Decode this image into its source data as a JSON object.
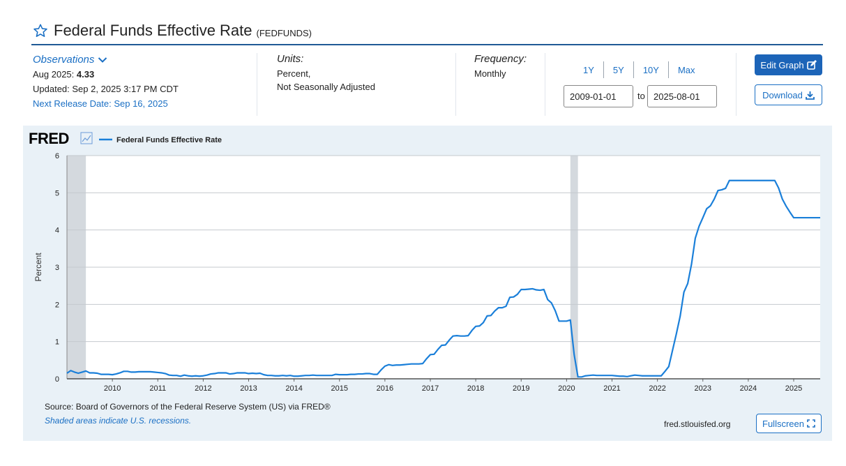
{
  "header": {
    "title": "Federal Funds Effective Rate",
    "series_id": "(FEDFUNDS)"
  },
  "observations": {
    "label": "Observations",
    "latest_prefix": "Aug 2025: ",
    "latest_value": "4.33",
    "updated": "Updated: Sep 2, 2025 3:17 PM CDT",
    "next_release": "Next Release Date: Sep 16, 2025"
  },
  "units": {
    "label": "Units:",
    "line1": "Percent,",
    "line2": "Not Seasonally Adjusted"
  },
  "frequency": {
    "label": "Frequency:",
    "value": "Monthly"
  },
  "range_buttons": [
    "1Y",
    "5Y",
    "10Y",
    "Max"
  ],
  "date_range": {
    "start": "2009-01-01",
    "to_label": "to",
    "end": "2025-08-01"
  },
  "buttons": {
    "edit_graph": "Edit Graph",
    "download": "Download",
    "fullscreen": "Fullscreen"
  },
  "footer": {
    "source": "Source: Board of Governors of the Federal Reserve System (US) via FRED®",
    "recession_note": "Shaded areas indicate U.S. recessions.",
    "url": "fred.stlouisfed.org"
  },
  "colors": {
    "line": "#1a7fd9",
    "recession": "#d4d9de",
    "accent": "#1c64b8",
    "panel_bg": "#e9f1f7"
  },
  "chart_data": {
    "type": "line",
    "logo": "FRED",
    "legend": "Federal Funds Effective Rate",
    "ylabel": "Percent",
    "ylim": [
      0,
      6
    ],
    "yticks": [
      0,
      1,
      2,
      3,
      4,
      5,
      6
    ],
    "xlim": [
      "2009-01-01",
      "2025-08-01"
    ],
    "xticks": [
      "2010",
      "2011",
      "2012",
      "2013",
      "2014",
      "2015",
      "2016",
      "2017",
      "2018",
      "2019",
      "2020",
      "2021",
      "2022",
      "2023",
      "2024",
      "2025"
    ],
    "grid": true,
    "recessions": [
      {
        "start": "2009-01-01",
        "end": "2009-06-01"
      },
      {
        "start": "2020-02-01",
        "end": "2020-04-01"
      }
    ],
    "series": [
      {
        "name": "Federal Funds Effective Rate",
        "points": [
          [
            "2009-01-01",
            0.15
          ],
          [
            "2009-02-01",
            0.22
          ],
          [
            "2009-03-01",
            0.18
          ],
          [
            "2009-04-01",
            0.15
          ],
          [
            "2009-05-01",
            0.18
          ],
          [
            "2009-06-01",
            0.21
          ],
          [
            "2009-07-01",
            0.16
          ],
          [
            "2009-08-01",
            0.16
          ],
          [
            "2009-09-01",
            0.15
          ],
          [
            "2009-10-01",
            0.12
          ],
          [
            "2009-11-01",
            0.12
          ],
          [
            "2009-12-01",
            0.12
          ],
          [
            "2010-01-01",
            0.11
          ],
          [
            "2010-02-01",
            0.13
          ],
          [
            "2010-03-01",
            0.16
          ],
          [
            "2010-04-01",
            0.2
          ],
          [
            "2010-05-01",
            0.2
          ],
          [
            "2010-06-01",
            0.18
          ],
          [
            "2010-07-01",
            0.18
          ],
          [
            "2010-08-01",
            0.19
          ],
          [
            "2010-09-01",
            0.19
          ],
          [
            "2010-10-01",
            0.19
          ],
          [
            "2010-11-01",
            0.19
          ],
          [
            "2010-12-01",
            0.18
          ],
          [
            "2011-01-01",
            0.17
          ],
          [
            "2011-02-01",
            0.16
          ],
          [
            "2011-03-01",
            0.14
          ],
          [
            "2011-04-01",
            0.1
          ],
          [
            "2011-05-01",
            0.09
          ],
          [
            "2011-06-01",
            0.09
          ],
          [
            "2011-07-01",
            0.07
          ],
          [
            "2011-08-01",
            0.1
          ],
          [
            "2011-09-01",
            0.08
          ],
          [
            "2011-10-01",
            0.07
          ],
          [
            "2011-11-01",
            0.08
          ],
          [
            "2011-12-01",
            0.07
          ],
          [
            "2012-01-01",
            0.08
          ],
          [
            "2012-02-01",
            0.1
          ],
          [
            "2012-03-01",
            0.13
          ],
          [
            "2012-04-01",
            0.14
          ],
          [
            "2012-05-01",
            0.16
          ],
          [
            "2012-06-01",
            0.16
          ],
          [
            "2012-07-01",
            0.16
          ],
          [
            "2012-08-01",
            0.13
          ],
          [
            "2012-09-01",
            0.14
          ],
          [
            "2012-10-01",
            0.16
          ],
          [
            "2012-11-01",
            0.16
          ],
          [
            "2012-12-01",
            0.16
          ],
          [
            "2013-01-01",
            0.14
          ],
          [
            "2013-02-01",
            0.15
          ],
          [
            "2013-03-01",
            0.14
          ],
          [
            "2013-04-01",
            0.15
          ],
          [
            "2013-05-01",
            0.11
          ],
          [
            "2013-06-01",
            0.09
          ],
          [
            "2013-07-01",
            0.09
          ],
          [
            "2013-08-01",
            0.08
          ],
          [
            "2013-09-01",
            0.08
          ],
          [
            "2013-10-01",
            0.09
          ],
          [
            "2013-11-01",
            0.08
          ],
          [
            "2013-12-01",
            0.09
          ],
          [
            "2014-01-01",
            0.07
          ],
          [
            "2014-02-01",
            0.07
          ],
          [
            "2014-03-01",
            0.08
          ],
          [
            "2014-04-01",
            0.09
          ],
          [
            "2014-05-01",
            0.09
          ],
          [
            "2014-06-01",
            0.1
          ],
          [
            "2014-07-01",
            0.09
          ],
          [
            "2014-08-01",
            0.09
          ],
          [
            "2014-09-01",
            0.09
          ],
          [
            "2014-10-01",
            0.09
          ],
          [
            "2014-11-01",
            0.09
          ],
          [
            "2014-12-01",
            0.12
          ],
          [
            "2015-01-01",
            0.11
          ],
          [
            "2015-02-01",
            0.11
          ],
          [
            "2015-03-01",
            0.11
          ],
          [
            "2015-04-01",
            0.12
          ],
          [
            "2015-05-01",
            0.12
          ],
          [
            "2015-06-01",
            0.13
          ],
          [
            "2015-07-01",
            0.13
          ],
          [
            "2015-08-01",
            0.14
          ],
          [
            "2015-09-01",
            0.14
          ],
          [
            "2015-10-01",
            0.12
          ],
          [
            "2015-11-01",
            0.12
          ],
          [
            "2015-12-01",
            0.24
          ],
          [
            "2016-01-01",
            0.34
          ],
          [
            "2016-02-01",
            0.38
          ],
          [
            "2016-03-01",
            0.36
          ],
          [
            "2016-04-01",
            0.37
          ],
          [
            "2016-05-01",
            0.37
          ],
          [
            "2016-06-01",
            0.38
          ],
          [
            "2016-07-01",
            0.39
          ],
          [
            "2016-08-01",
            0.4
          ],
          [
            "2016-09-01",
            0.4
          ],
          [
            "2016-10-01",
            0.4
          ],
          [
            "2016-11-01",
            0.41
          ],
          [
            "2016-12-01",
            0.54
          ],
          [
            "2017-01-01",
            0.65
          ],
          [
            "2017-02-01",
            0.66
          ],
          [
            "2017-03-01",
            0.79
          ],
          [
            "2017-04-01",
            0.9
          ],
          [
            "2017-05-01",
            0.91
          ],
          [
            "2017-06-01",
            1.04
          ],
          [
            "2017-07-01",
            1.15
          ],
          [
            "2017-08-01",
            1.16
          ],
          [
            "2017-09-01",
            1.15
          ],
          [
            "2017-10-01",
            1.15
          ],
          [
            "2017-11-01",
            1.16
          ],
          [
            "2017-12-01",
            1.3
          ],
          [
            "2018-01-01",
            1.41
          ],
          [
            "2018-02-01",
            1.42
          ],
          [
            "2018-03-01",
            1.51
          ],
          [
            "2018-04-01",
            1.69
          ],
          [
            "2018-05-01",
            1.7
          ],
          [
            "2018-06-01",
            1.82
          ],
          [
            "2018-07-01",
            1.91
          ],
          [
            "2018-08-01",
            1.91
          ],
          [
            "2018-09-01",
            1.95
          ],
          [
            "2018-10-01",
            2.19
          ],
          [
            "2018-11-01",
            2.2
          ],
          [
            "2018-12-01",
            2.27
          ],
          [
            "2019-01-01",
            2.4
          ],
          [
            "2019-02-01",
            2.4
          ],
          [
            "2019-03-01",
            2.41
          ],
          [
            "2019-04-01",
            2.42
          ],
          [
            "2019-05-01",
            2.39
          ],
          [
            "2019-06-01",
            2.38
          ],
          [
            "2019-07-01",
            2.4
          ],
          [
            "2019-08-01",
            2.13
          ],
          [
            "2019-09-01",
            2.04
          ],
          [
            "2019-10-01",
            1.83
          ],
          [
            "2019-11-01",
            1.55
          ],
          [
            "2019-12-01",
            1.55
          ],
          [
            "2020-01-01",
            1.55
          ],
          [
            "2020-02-01",
            1.58
          ],
          [
            "2020-03-01",
            0.65
          ],
          [
            "2020-04-01",
            0.05
          ],
          [
            "2020-05-01",
            0.05
          ],
          [
            "2020-06-01",
            0.08
          ],
          [
            "2020-07-01",
            0.09
          ],
          [
            "2020-08-01",
            0.1
          ],
          [
            "2020-09-01",
            0.09
          ],
          [
            "2020-10-01",
            0.09
          ],
          [
            "2020-11-01",
            0.09
          ],
          [
            "2020-12-01",
            0.09
          ],
          [
            "2021-01-01",
            0.09
          ],
          [
            "2021-02-01",
            0.08
          ],
          [
            "2021-03-01",
            0.07
          ],
          [
            "2021-04-01",
            0.07
          ],
          [
            "2021-05-01",
            0.06
          ],
          [
            "2021-06-01",
            0.08
          ],
          [
            "2021-07-01",
            0.1
          ],
          [
            "2021-08-01",
            0.09
          ],
          [
            "2021-09-01",
            0.08
          ],
          [
            "2021-10-01",
            0.08
          ],
          [
            "2021-11-01",
            0.08
          ],
          [
            "2021-12-01",
            0.08
          ],
          [
            "2022-01-01",
            0.08
          ],
          [
            "2022-02-01",
            0.08
          ],
          [
            "2022-03-01",
            0.2
          ],
          [
            "2022-04-01",
            0.33
          ],
          [
            "2022-05-01",
            0.77
          ],
          [
            "2022-06-01",
            1.21
          ],
          [
            "2022-07-01",
            1.68
          ],
          [
            "2022-08-01",
            2.33
          ],
          [
            "2022-09-01",
            2.56
          ],
          [
            "2022-10-01",
            3.08
          ],
          [
            "2022-11-01",
            3.78
          ],
          [
            "2022-12-01",
            4.1
          ],
          [
            "2023-01-01",
            4.33
          ],
          [
            "2023-02-01",
            4.57
          ],
          [
            "2023-03-01",
            4.65
          ],
          [
            "2023-04-01",
            4.83
          ],
          [
            "2023-05-01",
            5.06
          ],
          [
            "2023-06-01",
            5.08
          ],
          [
            "2023-07-01",
            5.12
          ],
          [
            "2023-08-01",
            5.33
          ],
          [
            "2023-09-01",
            5.33
          ],
          [
            "2023-10-01",
            5.33
          ],
          [
            "2023-11-01",
            5.33
          ],
          [
            "2023-12-01",
            5.33
          ],
          [
            "2024-01-01",
            5.33
          ],
          [
            "2024-02-01",
            5.33
          ],
          [
            "2024-03-01",
            5.33
          ],
          [
            "2024-04-01",
            5.33
          ],
          [
            "2024-05-01",
            5.33
          ],
          [
            "2024-06-01",
            5.33
          ],
          [
            "2024-07-01",
            5.33
          ],
          [
            "2024-08-01",
            5.33
          ],
          [
            "2024-09-01",
            5.13
          ],
          [
            "2024-10-01",
            4.83
          ],
          [
            "2024-11-01",
            4.64
          ],
          [
            "2024-12-01",
            4.48
          ],
          [
            "2025-01-01",
            4.33
          ],
          [
            "2025-02-01",
            4.33
          ],
          [
            "2025-03-01",
            4.33
          ],
          [
            "2025-04-01",
            4.33
          ],
          [
            "2025-05-01",
            4.33
          ],
          [
            "2025-06-01",
            4.33
          ],
          [
            "2025-07-01",
            4.33
          ],
          [
            "2025-08-01",
            4.33
          ]
        ]
      }
    ]
  }
}
